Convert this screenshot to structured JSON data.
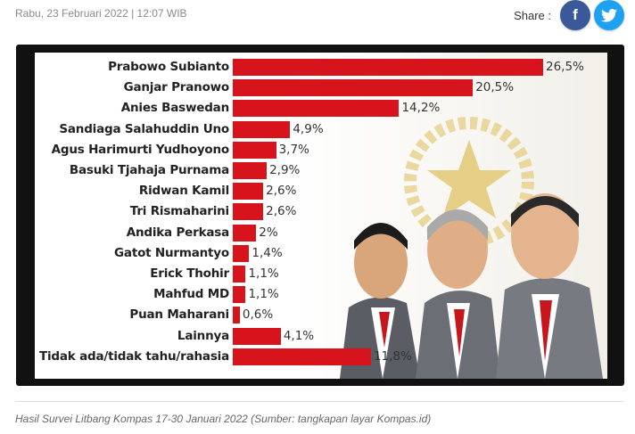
{
  "article": {
    "date": "Rabu, 23 Februari 2022 | 12:07 WIB",
    "caption": "Hasil Survei Litbang Kompas 17-30 Januari 2022 (Sumber: tangkapan layar Kompas.id)"
  },
  "share": {
    "label": "Share :",
    "facebook_glyph": "f",
    "twitter_icon": "twitter-bird-icon",
    "facebook_color": "#3b5998",
    "twitter_color": "#1da1f2"
  },
  "chart_data": {
    "type": "bar",
    "orientation": "horizontal",
    "bar_color": "#d7141c",
    "categories": [
      "Prabowo Subianto",
      "Ganjar Pranowo",
      "Anies Baswedan",
      "Sandiaga Salahuddin Uno",
      "Agus Harimurti Yudhoyono",
      "Basuki Tjahaja Purnama",
      "Ridwan Kamil",
      "Tri Rismaharini",
      "Andika Perkasa",
      "Gatot Nurmantyo",
      "Erick Thohir",
      "Mahfud MD",
      "Puan Maharani",
      "Lainnya",
      "Tidak ada/tidak tahu/rahasia"
    ],
    "values": [
      26.5,
      20.5,
      14.2,
      4.9,
      3.7,
      2.9,
      2.6,
      2.6,
      2,
      1.4,
      1.1,
      1.1,
      0.6,
      4.1,
      11.8
    ],
    "value_labels": [
      "26,5%",
      "20,5%",
      "14,2%",
      "4,9%",
      "3,7%",
      "2,9%",
      "2,6%",
      "2,6%",
      "2%",
      "1,4%",
      "1,1%",
      "1,1%",
      "0,6%",
      "4,1%",
      "11,8%"
    ]
  }
}
